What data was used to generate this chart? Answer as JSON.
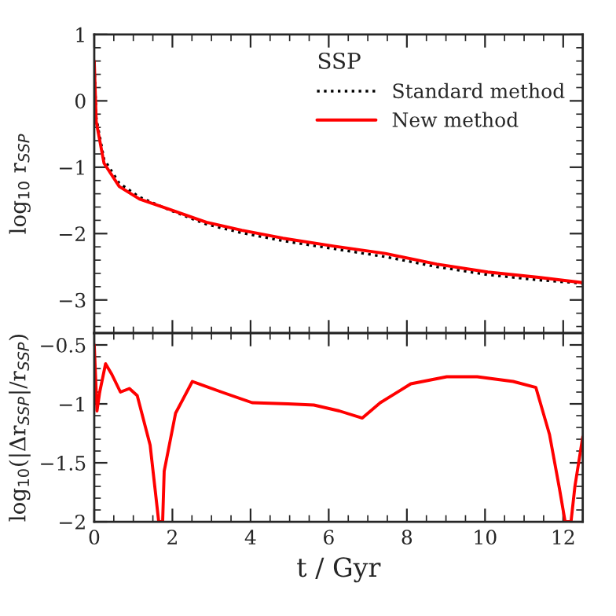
{
  "chart_data": [
    {
      "type": "line",
      "ylabel": "log$_{10}$ r$_{SSP}$",
      "legend_title": "SSP",
      "legend": "top right",
      "tick_labels": "y",
      "xlim": [
        0,
        12.5
      ],
      "xticks": [
        0,
        2,
        4,
        6,
        8,
        10,
        12
      ],
      "ylim": [
        -3.5,
        1
      ],
      "yticks": [
        -3,
        -2,
        -1,
        0,
        1
      ],
      "series": [
        {
          "name": "Standard method",
          "color": "#000000",
          "line_style": "dotted",
          "x": [
            0,
            0.05,
            0.25,
            0.64,
            1.16,
            1.95,
            2.87,
            3.78,
            4.83,
            6.14,
            7.45,
            8.76,
            10.07,
            11.37,
            12.5
          ],
          "values": [
            0.6,
            -0.25,
            -0.88,
            -1.24,
            -1.45,
            -1.65,
            -1.86,
            -1.99,
            -2.11,
            -2.23,
            -2.35,
            -2.5,
            -2.62,
            -2.7,
            -2.75
          ]
        },
        {
          "name": "New method",
          "color": "#ff0000",
          "line_style": "solid",
          "x": [
            0,
            0.05,
            0.25,
            0.64,
            1.16,
            1.95,
            2.87,
            3.78,
            4.83,
            6.14,
            7.45,
            8.76,
            10.07,
            11.37,
            12.5
          ],
          "values": [
            0.6,
            -0.31,
            -0.94,
            -1.29,
            -1.48,
            -1.64,
            -1.83,
            -1.95,
            -2.07,
            -2.19,
            -2.3,
            -2.46,
            -2.58,
            -2.66,
            -2.74
          ]
        }
      ]
    },
    {
      "type": "line",
      "xlabel": "t / Gyr",
      "ylabel": "log$_{10}$(|Δr$_{SSP}$|/r$_{SSP}$)",
      "xlim": [
        0,
        12.5
      ],
      "xticks": [
        0,
        2,
        4,
        6,
        8,
        10,
        12
      ],
      "ylim": [
        -2,
        -0.4
      ],
      "yticks": [
        -2,
        -1.5,
        -1,
        -0.5
      ],
      "series": [
        {
          "color": "#ff0000",
          "line_style": "solid",
          "x": [
            0,
            0.07,
            0.14,
            0.29,
            0.45,
            0.67,
            0.9,
            1.1,
            1.43,
            1.65,
            1.75,
            1.79,
            2.08,
            2.51,
            3.26,
            4.04,
            4.96,
            5.62,
            6.27,
            6.86,
            7.32,
            8.1,
            9.02,
            9.8,
            10.72,
            11.3,
            11.65,
            11.9,
            12.05,
            12.2,
            12.3,
            12.5
          ],
          "values": [
            -0.5,
            -1.06,
            -0.9,
            -0.66,
            -0.75,
            -0.9,
            -0.87,
            -0.93,
            -1.35,
            -2,
            -2,
            -1.57,
            -1.08,
            -0.81,
            -0.9,
            -0.99,
            -1.0,
            -1.01,
            -1.06,
            -1.12,
            -0.99,
            -0.83,
            -0.77,
            -0.77,
            -0.81,
            -0.86,
            -1.26,
            -1.71,
            -2,
            -2,
            -1.7,
            -1.28
          ]
        }
      ]
    }
  ]
}
